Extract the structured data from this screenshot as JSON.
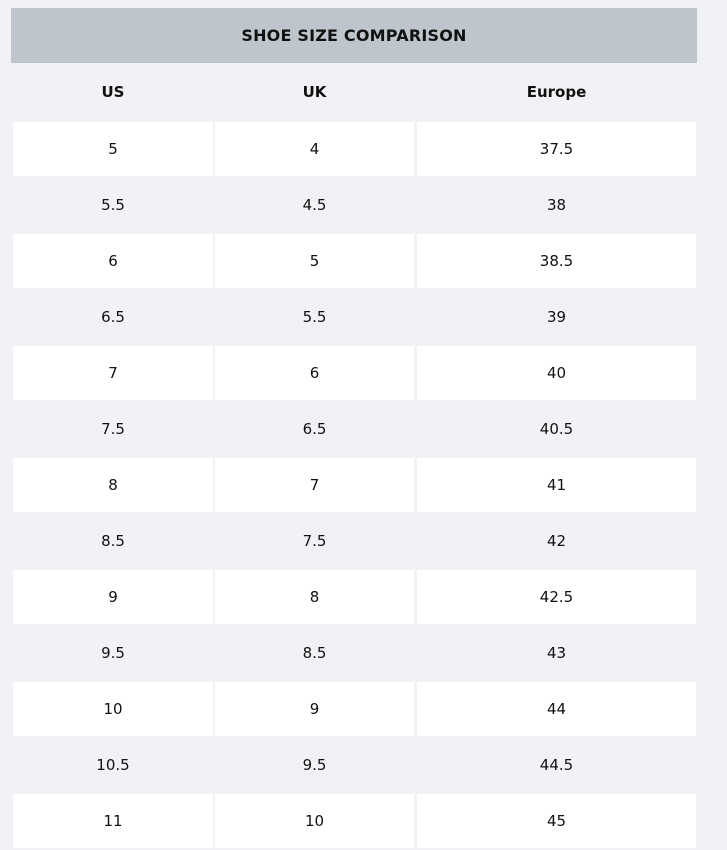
{
  "title": "SHOE SIZE COMPARISON",
  "columns": [
    "US",
    "UK",
    "Europe"
  ],
  "rows": [
    [
      "5",
      "4",
      "37.5"
    ],
    [
      "5.5",
      "4.5",
      "38"
    ],
    [
      "6",
      "5",
      "38.5"
    ],
    [
      "6.5",
      "5.5",
      "39"
    ],
    [
      "7",
      "6",
      "40"
    ],
    [
      "7.5",
      "6.5",
      "40.5"
    ],
    [
      "8",
      "7",
      "41"
    ],
    [
      "8.5",
      "7.5",
      "42"
    ],
    [
      "9",
      "8",
      "42.5"
    ],
    [
      "9.5",
      "8.5",
      "43"
    ],
    [
      "10",
      "9",
      "44"
    ],
    [
      "10.5",
      "9.5",
      "44.5"
    ],
    [
      "11",
      "10",
      "45"
    ]
  ],
  "colors": {
    "background": "#f1f2f5",
    "title_band": "#bfc5cc",
    "striped_row": "#ffffff"
  }
}
